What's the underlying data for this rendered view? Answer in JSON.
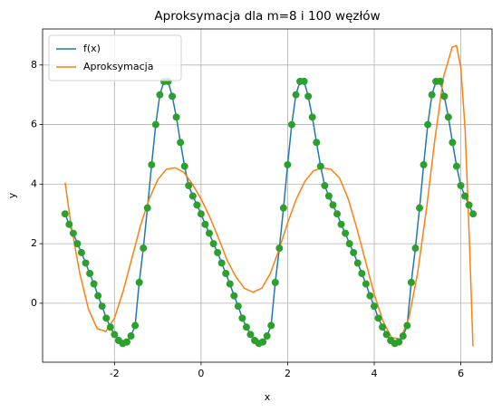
{
  "chart_data": {
    "type": "line",
    "title": "Aproksymacja dla m=8 i 100 węzłów",
    "xlabel": "x",
    "ylabel": "y",
    "xlim": [
      -3.66,
      6.72
    ],
    "ylim": [
      -1.98,
      9.21
    ],
    "xticks": [
      -2,
      0,
      2,
      4,
      6
    ],
    "yticks": [
      0,
      2,
      4,
      6,
      8
    ],
    "grid": true,
    "legend": "upper left",
    "series": [
      {
        "name": "f(x)",
        "color": "#1f77b4",
        "marker_color": "#2ca02c",
        "x": [
          -3.142,
          -3.046,
          -2.951,
          -2.856,
          -2.761,
          -2.666,
          -2.57,
          -2.475,
          -2.38,
          -2.285,
          -2.19,
          -2.094,
          -1.999,
          -1.904,
          -1.809,
          -1.714,
          -1.618,
          -1.523,
          -1.428,
          -1.333,
          -1.238,
          -1.142,
          -1.047,
          -0.952,
          -0.857,
          -0.762,
          -0.666,
          -0.571,
          -0.476,
          -0.381,
          -0.286,
          -0.19,
          -0.095,
          0,
          0.095,
          0.19,
          0.286,
          0.381,
          0.476,
          0.571,
          0.666,
          0.762,
          0.857,
          0.952,
          1.047,
          1.142,
          1.238,
          1.333,
          1.428,
          1.523,
          1.618,
          1.714,
          1.809,
          1.904,
          1.999,
          2.094,
          2.19,
          2.285,
          2.38,
          2.475,
          2.57,
          2.666,
          2.761,
          2.856,
          2.951,
          3.046,
          3.142,
          3.237,
          3.332,
          3.427,
          3.522,
          3.618,
          3.713,
          3.808,
          3.903,
          3.998,
          4.094,
          4.189,
          4.284,
          4.379,
          4.474,
          4.57,
          4.665,
          4.76,
          4.855,
          4.95,
          5.046,
          5.141,
          5.236,
          5.331,
          5.426,
          5.522,
          5.617,
          5.712,
          5.807,
          5.902,
          5.998,
          6.093,
          6.188,
          6.283
        ],
        "values": [
          3.0,
          2.65,
          2.35,
          2.0,
          1.7,
          1.35,
          1.0,
          0.65,
          0.25,
          -0.1,
          -0.5,
          -0.8,
          -1.05,
          -1.25,
          -1.35,
          -1.3,
          -1.1,
          -0.75,
          0.7,
          1.85,
          3.2,
          4.65,
          6.0,
          7.0,
          7.45,
          7.45,
          6.95,
          6.25,
          5.4,
          4.6,
          3.95,
          3.6,
          3.3,
          3.0,
          2.65,
          2.35,
          2.0,
          1.7,
          1.35,
          1.0,
          0.65,
          0.25,
          -0.1,
          -0.5,
          -0.8,
          -1.05,
          -1.25,
          -1.35,
          -1.3,
          -1.1,
          -0.75,
          0.7,
          1.85,
          3.2,
          4.65,
          6.0,
          7.0,
          7.45,
          7.45,
          6.95,
          6.25,
          5.4,
          4.6,
          3.95,
          3.6,
          3.3,
          3.0,
          2.65,
          2.35,
          2.0,
          1.7,
          1.35,
          1.0,
          0.65,
          0.25,
          -0.1,
          -0.5,
          -0.8,
          -1.05,
          -1.25,
          -1.35,
          -1.3,
          -1.1,
          -0.75,
          0.7,
          1.85,
          3.2,
          4.65,
          6.0,
          7.0,
          7.45,
          7.45,
          6.95,
          6.25,
          5.4,
          4.6,
          3.95,
          3.6,
          3.3,
          3.0
        ]
      },
      {
        "name": "Aproksymacja",
        "color": "#ff7f0e",
        "x": [
          -3.14,
          -3.0,
          -2.8,
          -2.6,
          -2.4,
          -2.2,
          -2.0,
          -1.8,
          -1.6,
          -1.4,
          -1.2,
          -1.0,
          -0.8,
          -0.6,
          -0.4,
          -0.2,
          0,
          0.2,
          0.4,
          0.6,
          0.8,
          1.0,
          1.2,
          1.4,
          1.6,
          1.8,
          2.0,
          2.2,
          2.4,
          2.6,
          2.8,
          3.0,
          3.2,
          3.4,
          3.6,
          3.8,
          4.0,
          4.2,
          4.4,
          4.6,
          4.8,
          5.0,
          5.2,
          5.4,
          5.6,
          5.8,
          5.9,
          6.0,
          6.1,
          6.2,
          6.28
        ],
        "values": [
          4.05,
          2.6,
          1.0,
          -0.2,
          -0.85,
          -0.95,
          -0.5,
          0.4,
          1.5,
          2.6,
          3.5,
          4.15,
          4.5,
          4.55,
          4.4,
          4.0,
          3.5,
          2.9,
          2.2,
          1.45,
          0.9,
          0.5,
          0.37,
          0.5,
          1.0,
          1.8,
          2.7,
          3.5,
          4.1,
          4.45,
          4.55,
          4.5,
          4.2,
          3.5,
          2.5,
          1.4,
          0.3,
          -0.6,
          -1.15,
          -1.2,
          -0.5,
          1.0,
          3.1,
          5.5,
          7.6,
          8.6,
          8.65,
          7.9,
          5.8,
          2.0,
          -1.45
        ]
      }
    ]
  }
}
